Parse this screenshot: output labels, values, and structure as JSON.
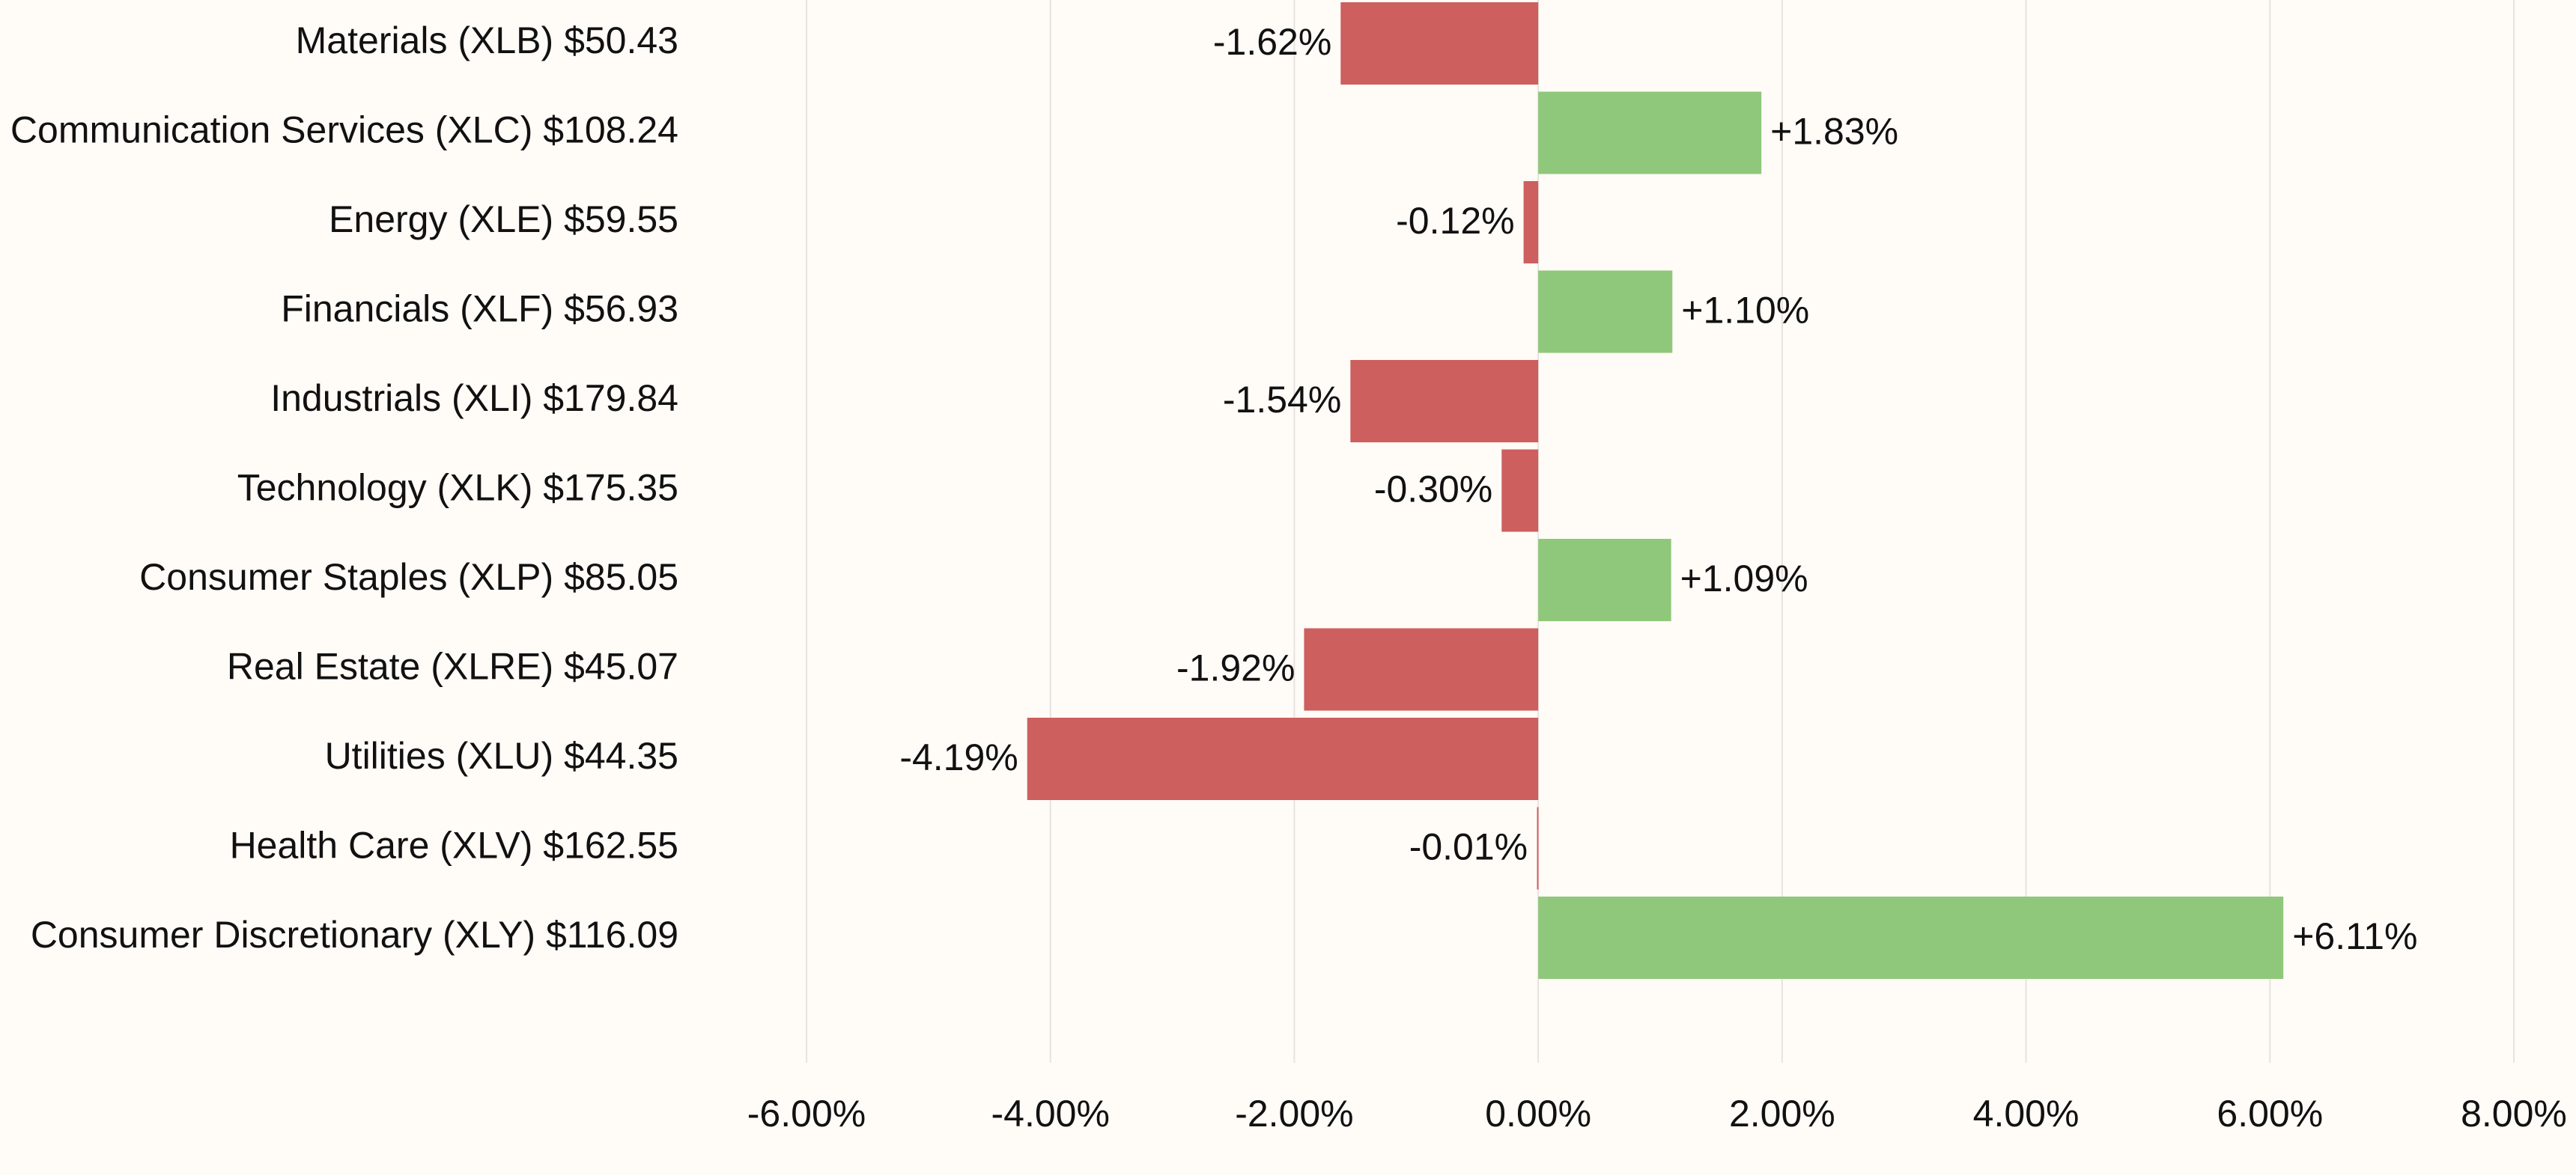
{
  "chart_data": {
    "type": "bar",
    "orientation": "horizontal",
    "title": "",
    "xlabel": "",
    "ylabel": "",
    "xlim": [
      -0.06,
      0.08
    ],
    "x_ticks": [
      -0.06,
      -0.04,
      -0.02,
      0.0,
      0.02,
      0.04,
      0.06,
      0.08
    ],
    "x_tick_labels": [
      "-6.00%",
      "-4.00%",
      "-2.00%",
      "0.00%",
      "2.00%",
      "4.00%",
      "6.00%",
      "8.00%"
    ],
    "grid": "vertical",
    "legend": "none",
    "colors": {
      "positive": "#8fc87a",
      "negative": "#cd5f5e",
      "background": "#fffbf7",
      "gridline": "#e6e3e0",
      "text": "#111111"
    },
    "categories": [
      "Materials (XLB) $50.43",
      "Communication Services (XLC) $108.24",
      "Energy (XLE) $59.55",
      "Financials (XLF) $56.93",
      "Industrials (XLI) $179.84",
      "Technology (XLK) $175.35",
      "Consumer Staples (XLP) $85.05",
      "Real Estate (XLRE) $45.07",
      "Utilities (XLU) $44.35",
      "Health Care (XLV) $162.55",
      "Consumer Discretionary (XLY) $116.09"
    ],
    "values": [
      -0.0162,
      0.0183,
      -0.0012,
      0.011,
      -0.0154,
      -0.003,
      0.0109,
      -0.0192,
      -0.0419,
      -0.0001,
      0.0611
    ],
    "value_labels": [
      "-1.62%",
      "+1.83%",
      "-0.12%",
      "+1.10%",
      "-1.54%",
      "-0.30%",
      "+1.09%",
      "-1.92%",
      "-4.19%",
      "-0.01%",
      "+6.11%"
    ]
  }
}
